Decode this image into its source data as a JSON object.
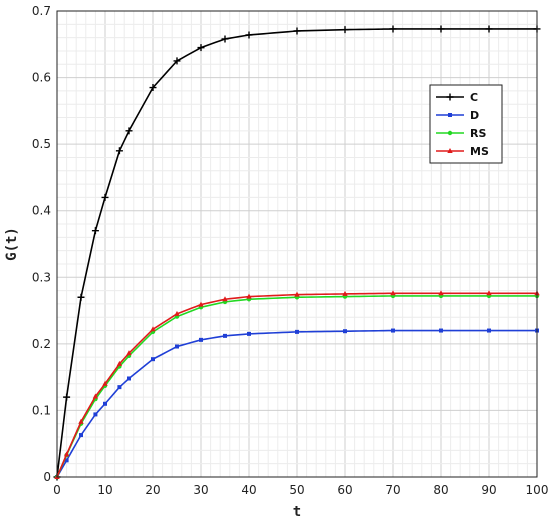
{
  "chart_data": {
    "type": "line",
    "title": "",
    "xlabel": "t",
    "ylabel": "G(t)",
    "xlim": [
      0,
      100
    ],
    "ylim": [
      0,
      0.7
    ],
    "x_ticks": [
      "0",
      "10",
      "20",
      "30",
      "40",
      "50",
      "60",
      "70",
      "80",
      "90",
      "100"
    ],
    "y_ticks": [
      "0",
      "0.1",
      "0.2",
      "0.3",
      "0.4",
      "0.5",
      "0.6",
      "0.7"
    ],
    "grid": "major-and-minor",
    "legend_position": "right",
    "series": [
      {
        "name": "C",
        "color": "#000000",
        "marker": "plus",
        "x": [
          0,
          2,
          5,
          8,
          10,
          13,
          15,
          20,
          25,
          30,
          35,
          40,
          50,
          60,
          70,
          80,
          90,
          100
        ],
        "y": [
          0,
          0.12,
          0.27,
          0.37,
          0.42,
          0.49,
          0.52,
          0.585,
          0.625,
          0.645,
          0.658,
          0.664,
          0.67,
          0.672,
          0.673,
          0.673,
          0.673,
          0.673
        ]
      },
      {
        "name": "D",
        "color": "#1f3fd6",
        "marker": "square",
        "x": [
          0,
          2,
          5,
          8,
          10,
          13,
          15,
          20,
          25,
          30,
          35,
          40,
          50,
          60,
          70,
          80,
          90,
          100
        ],
        "y": [
          0,
          0.025,
          0.063,
          0.094,
          0.11,
          0.135,
          0.148,
          0.177,
          0.196,
          0.206,
          0.212,
          0.215,
          0.218,
          0.219,
          0.22,
          0.22,
          0.22,
          0.22
        ]
      },
      {
        "name": "RS",
        "color": "#22d822",
        "marker": "circle",
        "x": [
          0,
          2,
          5,
          8,
          10,
          13,
          15,
          20,
          25,
          30,
          35,
          40,
          50,
          60,
          70,
          80,
          90,
          100
        ],
        "y": [
          0,
          0.033,
          0.08,
          0.117,
          0.137,
          0.166,
          0.182,
          0.218,
          0.241,
          0.255,
          0.263,
          0.267,
          0.27,
          0.271,
          0.272,
          0.272,
          0.272,
          0.272
        ]
      },
      {
        "name": "MS",
        "color": "#e01b1b",
        "marker": "triangle",
        "x": [
          0,
          2,
          5,
          8,
          10,
          13,
          15,
          20,
          25,
          30,
          35,
          40,
          50,
          60,
          70,
          80,
          90,
          100
        ],
        "y": [
          0,
          0.034,
          0.083,
          0.121,
          0.14,
          0.17,
          0.186,
          0.222,
          0.245,
          0.259,
          0.267,
          0.271,
          0.274,
          0.275,
          0.276,
          0.276,
          0.276,
          0.276
        ]
      }
    ]
  }
}
